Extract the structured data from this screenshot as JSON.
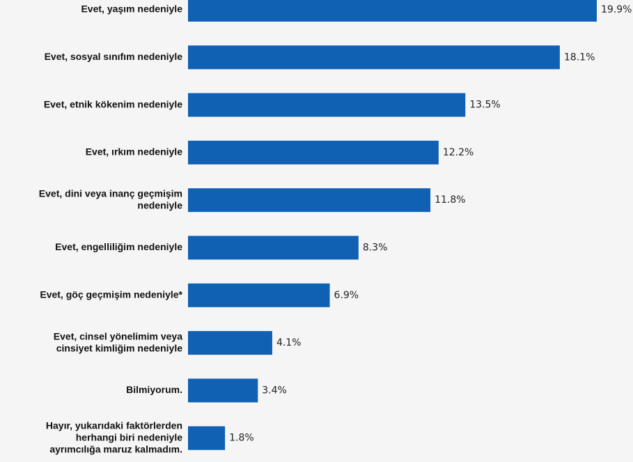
{
  "chart_data": {
    "type": "bar",
    "orientation": "horizontal",
    "categories": [
      [
        "Evet, yaşım nedeniyle"
      ],
      [
        "Evet, sosyal sınıfım nedeniyle"
      ],
      [
        "Evet, etnik kökenim nedeniyle"
      ],
      [
        "Evet, ırkım nedeniyle"
      ],
      [
        "Evet, dini veya inanç geçmişim",
        "nedeniyle"
      ],
      [
        "Evet, engelliliğim nedeniyle"
      ],
      [
        "Evet, göç geçmişim nedeniyle*"
      ],
      [
        "Evet, cinsel yönelimim veya",
        "cinsiyet kimliğim nedeniyle"
      ],
      [
        "Bilmiyorum."
      ],
      [
        "Hayır, yukarıdaki faktörlerden",
        "herhangi biri nedeniyle",
        "ayrımcılığa maruz kalmadım."
      ]
    ],
    "values": [
      19.9,
      18.1,
      13.5,
      12.2,
      11.8,
      8.3,
      6.9,
      4.1,
      3.4,
      1.8
    ],
    "value_labels": [
      "19.9%",
      "18.1%",
      "13.5%",
      "12.2%",
      "11.8%",
      "8.3%",
      "6.9%",
      "4.1%",
      "3.4%",
      "1.8%"
    ],
    "unit": "%",
    "xlim": [
      0,
      19.9
    ],
    "bar_color": "#1060b4",
    "grid": false,
    "legend": "none"
  }
}
